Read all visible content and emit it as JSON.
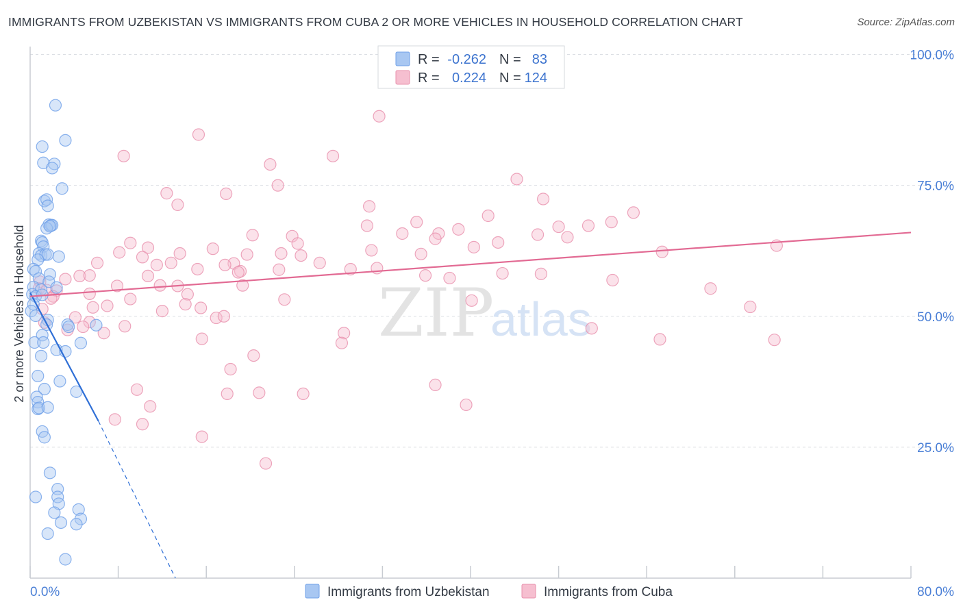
{
  "chart_data": {
    "type": "scatter",
    "title": "IMMIGRANTS FROM UZBEKISTAN VS IMMIGRANTS FROM CUBA 2 OR MORE VEHICLES IN HOUSEHOLD CORRELATION CHART",
    "source": "Source: ZipAtlas.com",
    "xlabel": "",
    "ylabel": "2 or more Vehicles in Household",
    "xlim": [
      0,
      80
    ],
    "ylim": [
      0,
      100
    ],
    "x_tick_labels": [
      "0.0%",
      "80.0%"
    ],
    "y_ticks": [
      25,
      50,
      75,
      100
    ],
    "y_tick_labels": [
      "25.0%",
      "50.0%",
      "75.0%",
      "100.0%"
    ],
    "watermark": {
      "zip": "ZIP",
      "atlas": "atlas"
    },
    "legend": {
      "r_label": "R =",
      "n_label": "N =",
      "entries": [
        {
          "name": "Immigrants from Uzbekistan",
          "r": "-0.262",
          "n": "83",
          "color": "#6fa0e8",
          "fill": "#a8c7f2"
        },
        {
          "name": "Immigrants from Cuba",
          "r": "0.224",
          "n": "124",
          "color": "#e890ad",
          "fill": "#f6bfd0"
        }
      ]
    },
    "series": [
      {
        "name": "Immigrants from Uzbekistan",
        "color": "#6fa0e8",
        "line_color": "#2f6fd6",
        "trend": {
          "x0": 0,
          "y0": 54.5,
          "x1": 6.2,
          "y1": 30.0,
          "dash_x1": 13.2,
          "dash_y1": 0
        },
        "points": [
          [
            2.3,
            90.3
          ],
          [
            3.2,
            83.6
          ],
          [
            1.1,
            82.4
          ],
          [
            1.2,
            79.3
          ],
          [
            2.2,
            79.1
          ],
          [
            2.0,
            78.3
          ],
          [
            2.9,
            74.4
          ],
          [
            1.3,
            72.0
          ],
          [
            1.5,
            72.3
          ],
          [
            1.6,
            71.1
          ],
          [
            1.7,
            67.5
          ],
          [
            1.9,
            67.4
          ],
          [
            2.0,
            67.4
          ],
          [
            1.5,
            66.8
          ],
          [
            1.8,
            67.2
          ],
          [
            1.0,
            64.4
          ],
          [
            1.1,
            64.1
          ],
          [
            1.2,
            63.3
          ],
          [
            0.8,
            62.0
          ],
          [
            1.0,
            61.6
          ],
          [
            1.4,
            61.8
          ],
          [
            1.6,
            61.8
          ],
          [
            2.6,
            61.4
          ],
          [
            0.7,
            60.8
          ],
          [
            0.3,
            59.0
          ],
          [
            0.5,
            58.6
          ],
          [
            1.8,
            58.0
          ],
          [
            0.8,
            57.2
          ],
          [
            1.7,
            56.6
          ],
          [
            0.3,
            55.6
          ],
          [
            1.0,
            55.1
          ],
          [
            2.4,
            55.5
          ],
          [
            0.2,
            54.2
          ],
          [
            0.5,
            53.8
          ],
          [
            1.1,
            54.1
          ],
          [
            0.3,
            52.3
          ],
          [
            0.1,
            51.0
          ],
          [
            0.5,
            50.1
          ],
          [
            1.6,
            49.3
          ],
          [
            1.5,
            48.4
          ],
          [
            3.4,
            48.4
          ],
          [
            3.5,
            48.0
          ],
          [
            6.0,
            48.3
          ],
          [
            1.1,
            46.4
          ],
          [
            0.4,
            45.0
          ],
          [
            1.2,
            45.0
          ],
          [
            4.6,
            44.9
          ],
          [
            2.4,
            43.6
          ],
          [
            3.2,
            43.3
          ],
          [
            1.0,
            42.4
          ],
          [
            0.7,
            38.6
          ],
          [
            2.7,
            37.6
          ],
          [
            1.3,
            36.1
          ],
          [
            4.2,
            35.6
          ],
          [
            0.6,
            34.6
          ],
          [
            0.7,
            33.6
          ],
          [
            0.7,
            32.3
          ],
          [
            0.8,
            32.5
          ],
          [
            1.6,
            32.6
          ],
          [
            1.1,
            28.0
          ],
          [
            1.3,
            26.9
          ],
          [
            1.8,
            20.1
          ],
          [
            0.5,
            15.5
          ],
          [
            2.5,
            17.0
          ],
          [
            2.5,
            15.5
          ],
          [
            2.6,
            14.2
          ],
          [
            4.4,
            13.1
          ],
          [
            2.2,
            12.5
          ],
          [
            2.8,
            10.6
          ],
          [
            4.6,
            11.3
          ],
          [
            4.2,
            10.3
          ],
          [
            1.6,
            8.5
          ],
          [
            3.2,
            3.6
          ]
        ]
      },
      {
        "name": "Immigrants from Cuba",
        "color": "#e890ad",
        "line_color": "#e26a93",
        "trend": {
          "x0": 0,
          "y0": 53.8,
          "x1": 80,
          "y1": 66.0
        },
        "points": [
          [
            31.7,
            88.2
          ],
          [
            15.3,
            84.7
          ],
          [
            8.5,
            80.6
          ],
          [
            27.5,
            80.6
          ],
          [
            21.8,
            79.0
          ],
          [
            22.5,
            75.0
          ],
          [
            44.2,
            76.2
          ],
          [
            12.4,
            73.5
          ],
          [
            17.8,
            73.4
          ],
          [
            13.4,
            71.3
          ],
          [
            30.8,
            71.0
          ],
          [
            46.6,
            72.4
          ],
          [
            41.6,
            69.2
          ],
          [
            54.8,
            69.8
          ],
          [
            52.8,
            68.0
          ],
          [
            35.1,
            68.0
          ],
          [
            30.6,
            67.3
          ],
          [
            48.0,
            67.1
          ],
          [
            50.7,
            67.3
          ],
          [
            38.9,
            66.6
          ],
          [
            23.8,
            65.3
          ],
          [
            20.2,
            65.5
          ],
          [
            33.8,
            65.8
          ],
          [
            37.1,
            65.8
          ],
          [
            46.1,
            65.6
          ],
          [
            48.8,
            65.1
          ],
          [
            36.8,
            64.8
          ],
          [
            42.5,
            64.1
          ],
          [
            24.3,
            63.9
          ],
          [
            9.1,
            64.0
          ],
          [
            40.3,
            63.2
          ],
          [
            10.7,
            63.1
          ],
          [
            16.6,
            62.9
          ],
          [
            57.4,
            62.3
          ],
          [
            67.8,
            63.5
          ],
          [
            8.1,
            62.2
          ],
          [
            13.6,
            62.0
          ],
          [
            22.8,
            62.0
          ],
          [
            19.7,
            61.8
          ],
          [
            31.0,
            62.6
          ],
          [
            35.5,
            61.9
          ],
          [
            24.6,
            61.6
          ],
          [
            10.2,
            61.3
          ],
          [
            12.8,
            60.2
          ],
          [
            18.5,
            60.1
          ],
          [
            6.1,
            60.2
          ],
          [
            11.5,
            59.8
          ],
          [
            17.7,
            59.8
          ],
          [
            26.3,
            60.2
          ],
          [
            15.2,
            59.0
          ],
          [
            19.1,
            58.6
          ],
          [
            18.9,
            58.4
          ],
          [
            22.6,
            58.9
          ],
          [
            31.5,
            59.2
          ],
          [
            29.1,
            59.0
          ],
          [
            42.9,
            58.2
          ],
          [
            46.4,
            58.1
          ],
          [
            35.9,
            57.8
          ],
          [
            10.7,
            57.7
          ],
          [
            4.5,
            57.7
          ],
          [
            5.4,
            57.8
          ],
          [
            38.1,
            57.3
          ],
          [
            3.2,
            57.1
          ],
          [
            52.9,
            56.9
          ],
          [
            0.9,
            56.6
          ],
          [
            19.3,
            55.9
          ],
          [
            7.9,
            55.8
          ],
          [
            11.8,
            55.9
          ],
          [
            13.4,
            55.8
          ],
          [
            0.8,
            55.3
          ],
          [
            1.5,
            55.0
          ],
          [
            61.8,
            55.3
          ],
          [
            2.4,
            54.9
          ],
          [
            5.4,
            54.3
          ],
          [
            2.1,
            53.8
          ],
          [
            1.9,
            53.4
          ],
          [
            9.1,
            53.3
          ],
          [
            14.3,
            54.2
          ],
          [
            23.1,
            53.2
          ],
          [
            40.1,
            53.0
          ],
          [
            14.1,
            52.3
          ],
          [
            7.0,
            52.0
          ],
          [
            15.5,
            51.6
          ],
          [
            12.0,
            51.0
          ],
          [
            5.7,
            51.7
          ],
          [
            65.4,
            51.8
          ],
          [
            4.1,
            49.8
          ],
          [
            16.9,
            49.7
          ],
          [
            17.6,
            50.0
          ],
          [
            5.4,
            48.9
          ],
          [
            8.6,
            48.1
          ],
          [
            3.4,
            47.4
          ],
          [
            4.8,
            48.0
          ],
          [
            51.0,
            47.7
          ],
          [
            1.3,
            48.8
          ],
          [
            28.5,
            46.8
          ],
          [
            6.7,
            46.8
          ],
          [
            15.6,
            45.7
          ],
          [
            28.3,
            44.9
          ],
          [
            57.2,
            45.6
          ],
          [
            67.6,
            45.5
          ],
          [
            20.3,
            42.5
          ],
          [
            18.2,
            39.9
          ],
          [
            36.8,
            36.9
          ],
          [
            9.7,
            36.0
          ],
          [
            17.9,
            35.2
          ],
          [
            20.8,
            35.4
          ],
          [
            24.8,
            35.2
          ],
          [
            10.9,
            32.8
          ],
          [
            39.6,
            33.1
          ],
          [
            7.7,
            30.3
          ],
          [
            10.2,
            29.4
          ],
          [
            15.6,
            27.0
          ],
          [
            21.4,
            21.9
          ],
          [
            1.1,
            51.4
          ]
        ]
      }
    ]
  }
}
